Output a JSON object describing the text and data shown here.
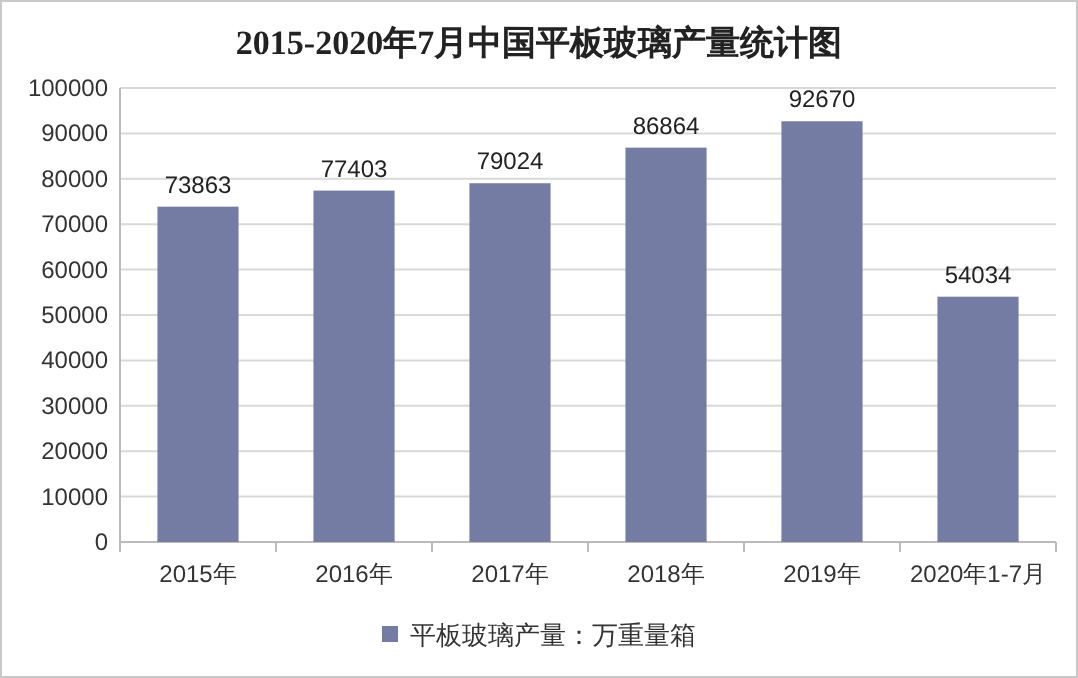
{
  "chart_data": {
    "type": "bar",
    "title": "2015-2020年7月中国平板玻璃产量统计图",
    "categories": [
      "2015年",
      "2016年",
      "2017年",
      "2018年",
      "2019年",
      "2020年1-7月"
    ],
    "series": [
      {
        "name": "平板玻璃产量：万重量箱",
        "color": "#757ca3",
        "values": [
          73863,
          77403,
          79024,
          86864,
          92670,
          54034
        ]
      }
    ],
    "ylim": [
      0,
      100000
    ],
    "yticks": [
      0,
      10000,
      20000,
      30000,
      40000,
      50000,
      60000,
      70000,
      80000,
      90000,
      100000
    ],
    "grid": "y",
    "legend": "bottom",
    "data_labels": true
  }
}
